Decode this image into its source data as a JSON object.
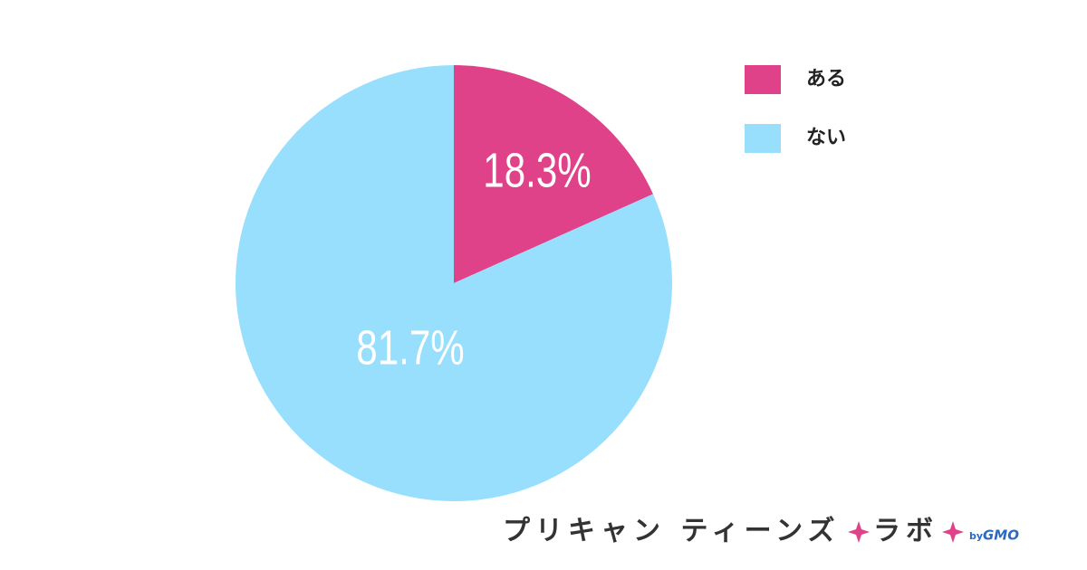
{
  "chart_data": {
    "type": "pie",
    "categories": [
      "ある",
      "ない"
    ],
    "values": [
      18.3,
      81.7
    ],
    "value_labels": [
      "18.3%",
      "81.7%"
    ],
    "colors": [
      "#e0428a",
      "#97dffd"
    ],
    "legend": "top-right"
  },
  "footer": {
    "logo": "プリキャン ティーンズ",
    "lab": "ラボ",
    "by": "by",
    "company": "GMO"
  }
}
